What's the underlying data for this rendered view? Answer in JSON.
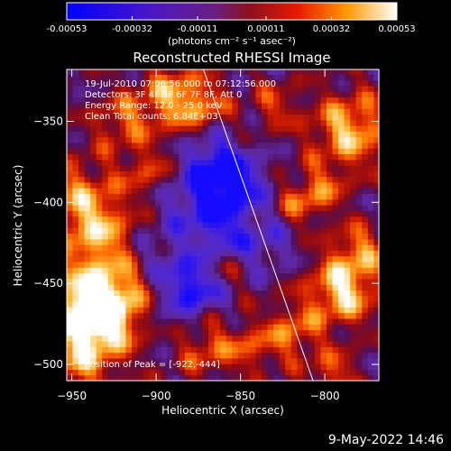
{
  "chart_data": {
    "type": "heatmap",
    "title": "Reconstructed RHESSI Image",
    "xlabel": "Heliocentric X (arcsec)",
    "ylabel": "Heliocentric Y (arcsec)",
    "xlim": [
      -953,
      -768
    ],
    "ylim": [
      -510,
      -318
    ],
    "x_ticks": [
      -950,
      -900,
      -850,
      -800
    ],
    "x_tick_labels": [
      "−950",
      "−900",
      "−850",
      "−800"
    ],
    "y_ticks": [
      -350,
      -400,
      -450,
      -500
    ],
    "y_tick_labels": [
      "−350",
      "−400",
      "−450",
      "−500"
    ],
    "colorbar": {
      "min": -0.00053,
      "max": 0.00053,
      "tick_values": [
        -0.00053,
        -0.00032,
        -0.00011,
        0.00011,
        0.00032,
        0.00053
      ],
      "tick_labels": [
        "-0.00053",
        "-0.00032",
        "-0.00011",
        "0.00011",
        "0.00032",
        "0.00053"
      ],
      "unit_label": "(photons cm⁻² s⁻¹ asec⁻²)"
    },
    "annotations": [
      "19-Jul-2010 07:06:56.000 to 07:12:56.000",
      "Detectors: 3F 4F 5F 6F 7F 8F, Att 0",
      "Energy Range: 12.0 - 25.0 keV",
      "Clean    Total counts: 6.84E+03"
    ],
    "peak_label": "Position of Peak = [-922,-444]",
    "peak": [
      -922,
      -444
    ],
    "limb_line": [
      [
        -872,
        -318
      ],
      [
        -807,
        -510
      ]
    ],
    "grid": false,
    "legend": "none"
  },
  "timestamp": "9-May-2022 14:46"
}
